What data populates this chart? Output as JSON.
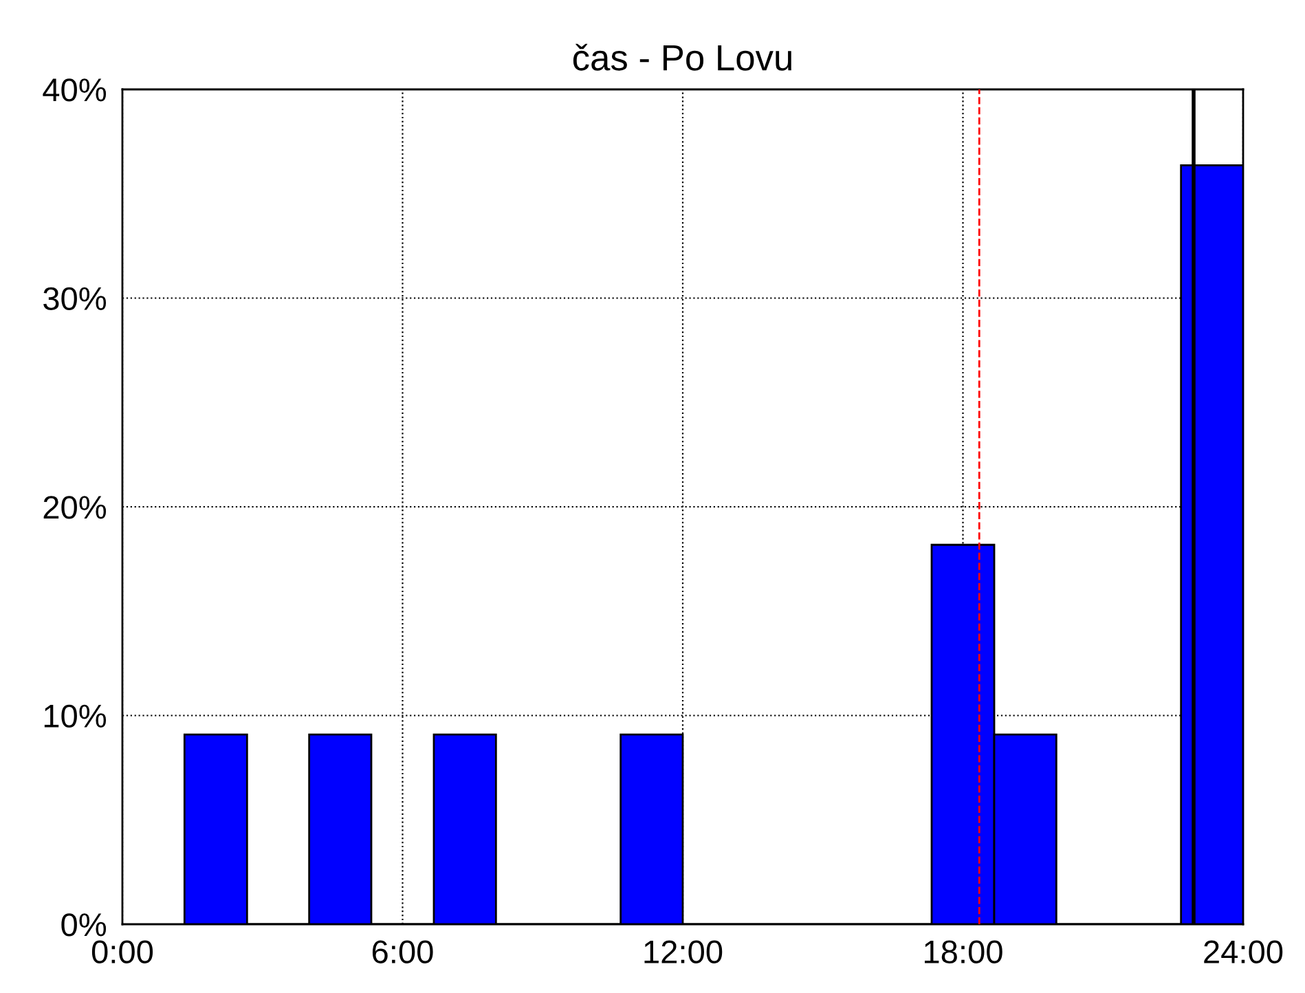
{
  "chart_data": {
    "type": "histogram",
    "title": "čas - Po Lovu",
    "bins": [
      1.33,
      2.67,
      4,
      5.33,
      6.67,
      8,
      10.67,
      12,
      17.33,
      18.67,
      20,
      22.67,
      24
    ],
    "values": [
      9.09,
      0,
      9.09,
      0,
      9.09,
      0,
      9.09,
      0,
      18.18,
      9.09,
      0,
      36.36
    ],
    "color": "#0000ff",
    "xlim": [
      0,
      24
    ],
    "xticks": [
      {
        "value": 0,
        "label": "0:00"
      },
      {
        "value": 6,
        "label": "6:00"
      },
      {
        "value": 12,
        "label": "12:00"
      },
      {
        "value": 18,
        "label": "18:00"
      },
      {
        "value": 24,
        "label": "24:00"
      }
    ],
    "ylim": [
      0,
      40
    ],
    "yticks": [
      {
        "value": 0,
        "label": "0%"
      },
      {
        "value": 10,
        "label": "10%"
      },
      {
        "value": 20,
        "label": "20%"
      },
      {
        "value": 30,
        "label": "30%"
      },
      {
        "value": 40,
        "label": "40%"
      }
    ],
    "grid": true,
    "ref_lines": [
      {
        "axis": "x",
        "value": 18.35,
        "color": "#ff0000",
        "line_style": "dashed"
      },
      {
        "axis": "x",
        "value": 22.94,
        "color": "#000000",
        "line_style": "solid"
      }
    ]
  }
}
